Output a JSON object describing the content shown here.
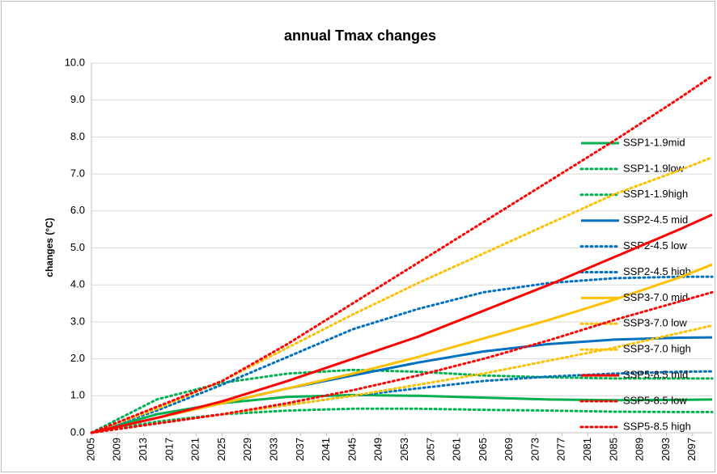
{
  "chart_data": {
    "type": "line",
    "title": "annual Tmax changes",
    "y_label": "changes (°C)",
    "x": [
      2005,
      2015,
      2025,
      2035,
      2045,
      2055,
      2065,
      2075,
      2085,
      2095,
      2100
    ],
    "xlim": [
      2005,
      2100
    ],
    "xticks": [
      2005,
      2009,
      2013,
      2017,
      2021,
      2025,
      2029,
      2033,
      2037,
      2041,
      2045,
      2049,
      2053,
      2057,
      2061,
      2065,
      2069,
      2073,
      2077,
      2081,
      2085,
      2089,
      2093,
      2097
    ],
    "ylim": [
      0,
      10
    ],
    "yticks": [
      {
        "value": 0,
        "label": "0.0"
      },
      {
        "value": 1,
        "label": "1.0"
      },
      {
        "value": 2,
        "label": "2.0"
      },
      {
        "value": 3,
        "label": "3.0"
      },
      {
        "value": 4,
        "label": "4.0"
      },
      {
        "value": 5,
        "label": "5.0"
      },
      {
        "value": 6,
        "label": "6.0"
      },
      {
        "value": 7,
        "label": "7.0"
      },
      {
        "value": 8,
        "label": "8.0"
      },
      {
        "value": 9,
        "label": "9.0"
      },
      {
        "value": 10,
        "label": "10.0"
      }
    ],
    "grid": true,
    "legend": "right",
    "series": [
      {
        "name": "SSP1-1.9mid",
        "color": "#00b050",
        "style": "solid",
        "values": [
          0,
          0.5,
          0.8,
          0.97,
          1.02,
          1.0,
          0.95,
          0.9,
          0.88,
          0.89,
          0.9
        ]
      },
      {
        "name": "SSP1-1.9low",
        "color": "#00b050",
        "style": "dotted",
        "values": [
          0,
          0.3,
          0.5,
          0.6,
          0.65,
          0.65,
          0.62,
          0.6,
          0.57,
          0.56,
          0.56
        ]
      },
      {
        "name": "SSP1-1.9high",
        "color": "#00b050",
        "style": "dotted",
        "values": [
          0,
          0.9,
          1.35,
          1.6,
          1.7,
          1.65,
          1.55,
          1.5,
          1.47,
          1.47,
          1.47
        ]
      },
      {
        "name": "SSP2-4.5 mid",
        "color": "#0070c0",
        "style": "solid",
        "values": [
          0,
          0.4,
          0.8,
          1.2,
          1.55,
          1.9,
          2.2,
          2.4,
          2.52,
          2.57,
          2.58
        ]
      },
      {
        "name": "SSP2-4.5 low",
        "color": "#0070c0",
        "style": "dotted",
        "values": [
          0,
          0.25,
          0.5,
          0.75,
          1.0,
          1.2,
          1.4,
          1.52,
          1.6,
          1.65,
          1.66
        ]
      },
      {
        "name": "SSP2-4.5 high",
        "color": "#0070c0",
        "style": "dotted",
        "values": [
          0,
          0.6,
          1.3,
          2.05,
          2.8,
          3.35,
          3.8,
          4.05,
          4.18,
          4.22,
          4.22
        ]
      },
      {
        "name": "SSP3-7.0 mid",
        "color": "#ffc000",
        "style": "solid",
        "values": [
          0,
          0.4,
          0.8,
          1.2,
          1.6,
          2.05,
          2.55,
          3.05,
          3.6,
          4.2,
          4.55
        ]
      },
      {
        "name": "SSP3-7.0 low",
        "color": "#ffc000",
        "style": "dotted",
        "values": [
          0,
          0.25,
          0.5,
          0.75,
          1.0,
          1.3,
          1.6,
          1.95,
          2.3,
          2.7,
          2.9
        ]
      },
      {
        "name": "SSP3-7.0 high",
        "color": "#ffc000",
        "style": "dotted",
        "values": [
          0,
          0.65,
          1.4,
          2.3,
          3.2,
          4.05,
          4.85,
          5.65,
          6.45,
          7.1,
          7.45
        ]
      },
      {
        "name": "SSP5-8.5 mid",
        "color": "#ff0000",
        "style": "solid",
        "values": [
          0,
          0.4,
          0.85,
          1.4,
          2.0,
          2.6,
          3.3,
          4.0,
          4.75,
          5.5,
          5.9
        ]
      },
      {
        "name": "SSP5-8.5 low",
        "color": "#ff0000",
        "style": "dotted",
        "values": [
          0,
          0.25,
          0.5,
          0.8,
          1.15,
          1.55,
          2.0,
          2.5,
          3.05,
          3.55,
          3.8
        ]
      },
      {
        "name": "SSP5-8.5 high",
        "color": "#ff0000",
        "style": "dotted",
        "values": [
          0,
          0.7,
          1.4,
          2.4,
          3.5,
          4.6,
          5.7,
          6.8,
          7.9,
          9.05,
          9.65
        ]
      }
    ]
  }
}
